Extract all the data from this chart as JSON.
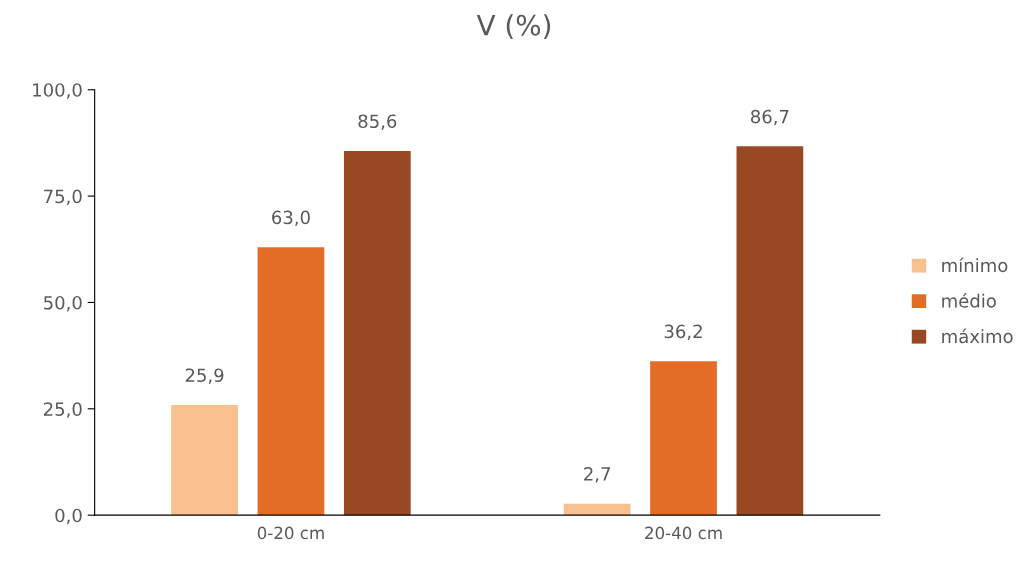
{
  "chart_data": {
    "type": "bar",
    "title": "V (%)",
    "categories": [
      "0-20 cm",
      "20-40 cm"
    ],
    "series": [
      {
        "name": "mínimo",
        "color": "#f8bf8f",
        "values": [
          25.9,
          2.7
        ],
        "value_labels": [
          "25,9",
          "2,7"
        ]
      },
      {
        "name": "médio",
        "color": "#e36c27",
        "values": [
          63.0,
          36.2
        ],
        "value_labels": [
          "63,0",
          "36,2"
        ]
      },
      {
        "name": "máximo",
        "color": "#984822",
        "values": [
          85.6,
          86.7
        ],
        "value_labels": [
          "85,6",
          "86,7"
        ]
      }
    ],
    "ylim": [
      0,
      100
    ],
    "yticks": [
      {
        "value": 0,
        "label": "0,0"
      },
      {
        "value": 25,
        "label": "25,0"
      },
      {
        "value": 50,
        "label": "50,0"
      },
      {
        "value": 75,
        "label": "75,0"
      },
      {
        "value": 100,
        "label": "100,0"
      }
    ],
    "legend": "right"
  }
}
